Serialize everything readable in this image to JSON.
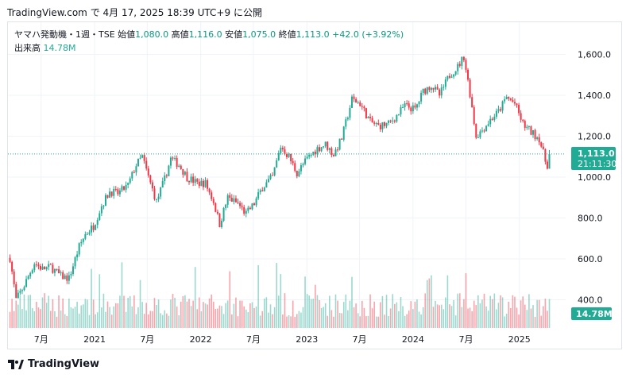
{
  "header": {
    "source": "TradingView.com",
    "particle": "で",
    "timestamp": "4月 17, 2025 18:39 UTC+9",
    "suffix": "に公開"
  },
  "legend": {
    "symbol": "ヤマハ発動機・1週・TSE",
    "open_label": "始値",
    "open": "1,080.0",
    "high_label": "高値",
    "high": "1,116.0",
    "low_label": "安値",
    "low": "1,075.0",
    "close_label": "終値",
    "close": "1,113.0",
    "change": "+42.0 (+3.92%)",
    "volume_label": "出来高",
    "volume": "14.78M"
  },
  "price_tag": {
    "price": "1,113.0",
    "countdown": "21:11:30"
  },
  "volume_tag": "14.78M",
  "footer": {
    "brand": "TradingView"
  },
  "colors": {
    "up": "#22ab94",
    "down": "#f23645",
    "up_volume": "#22ab94",
    "down_volume": "#f23645",
    "grid": "#f0f3fa"
  },
  "chart_data": {
    "type": "candlestick",
    "interval": "1週",
    "y_ticks": [
      400,
      600,
      800,
      1000,
      1200,
      1400,
      1600
    ],
    "y_tick_labels": [
      "400.0",
      "600.0",
      "800.0",
      "1,000.0",
      "1,200.0",
      "1,400.0",
      "1,600.0"
    ],
    "ylim": [
      300,
      1700
    ],
    "x_ticks": [
      {
        "date": "2020-07-01",
        "label": "7月"
      },
      {
        "date": "2021-01-01",
        "label": "2021"
      },
      {
        "date": "2021-07-01",
        "label": "7月"
      },
      {
        "date": "2022-01-01",
        "label": "2022"
      },
      {
        "date": "2022-07-01",
        "label": "7月"
      },
      {
        "date": "2023-01-01",
        "label": "2023"
      },
      {
        "date": "2023-07-01",
        "label": "7月"
      },
      {
        "date": "2024-01-01",
        "label": "2024"
      },
      {
        "date": "2024-07-01",
        "label": "7月"
      },
      {
        "date": "2025-01-01",
        "label": "2025"
      }
    ],
    "x_range": [
      "2020-03-09",
      "2025-06-09"
    ],
    "last_price": 1113.0,
    "price_path": [
      [
        "2020-03-16",
        605
      ],
      [
        "2020-04-06",
        400
      ],
      [
        "2020-05-04",
        470
      ],
      [
        "2020-06-08",
        580
      ],
      [
        "2020-07-06",
        550
      ],
      [
        "2020-08-03",
        560
      ],
      [
        "2020-09-07",
        515
      ],
      [
        "2020-10-05",
        505
      ],
      [
        "2020-11-09",
        660
      ],
      [
        "2020-11-30",
        720
      ],
      [
        "2020-12-28",
        760
      ],
      [
        "2021-01-25",
        860
      ],
      [
        "2021-02-22",
        930
      ],
      [
        "2021-03-22",
        920
      ],
      [
        "2021-04-26",
        960
      ],
      [
        "2021-05-24",
        1060
      ],
      [
        "2021-06-14",
        1100
      ],
      [
        "2021-07-05",
        1000
      ],
      [
        "2021-08-02",
        880
      ],
      [
        "2021-08-30",
        990
      ],
      [
        "2021-09-20",
        1090
      ],
      [
        "2021-10-18",
        1060
      ],
      [
        "2021-11-15",
        1000
      ],
      [
        "2021-12-20",
        970
      ],
      [
        "2022-01-17",
        970
      ],
      [
        "2022-02-14",
        880
      ],
      [
        "2022-03-07",
        770
      ],
      [
        "2022-04-04",
        900
      ],
      [
        "2022-05-09",
        870
      ],
      [
        "2022-06-06",
        820
      ],
      [
        "2022-07-04",
        870
      ],
      [
        "2022-08-01",
        950
      ],
      [
        "2022-09-05",
        1000
      ],
      [
        "2022-10-03",
        1150
      ],
      [
        "2022-10-31",
        1100
      ],
      [
        "2022-11-28",
        1020
      ],
      [
        "2023-01-02",
        1090
      ],
      [
        "2023-02-06",
        1140
      ],
      [
        "2023-03-06",
        1160
      ],
      [
        "2023-04-03",
        1110
      ],
      [
        "2023-05-01",
        1190
      ],
      [
        "2023-06-05",
        1380
      ],
      [
        "2023-07-03",
        1360
      ],
      [
        "2023-08-07",
        1270
      ],
      [
        "2023-09-04",
        1250
      ],
      [
        "2023-10-09",
        1260
      ],
      [
        "2023-11-06",
        1300
      ],
      [
        "2023-12-04",
        1350
      ],
      [
        "2024-01-08",
        1330
      ],
      [
        "2024-02-05",
        1420
      ],
      [
        "2024-03-04",
        1450
      ],
      [
        "2024-04-01",
        1400
      ],
      [
        "2024-05-06",
        1500
      ],
      [
        "2024-06-03",
        1540
      ],
      [
        "2024-06-24",
        1590
      ],
      [
        "2024-07-15",
        1410
      ],
      [
        "2024-08-05",
        1200
      ],
      [
        "2024-08-26",
        1230
      ],
      [
        "2024-09-23",
        1280
      ],
      [
        "2024-10-21",
        1320
      ],
      [
        "2024-11-18",
        1390
      ],
      [
        "2024-12-16",
        1360
      ],
      [
        "2025-01-13",
        1260
      ],
      [
        "2025-02-10",
        1220
      ],
      [
        "2025-03-10",
        1190
      ],
      [
        "2025-03-31",
        1080
      ],
      [
        "2025-04-07",
        1060
      ],
      [
        "2025-04-14",
        1113
      ]
    ]
  }
}
